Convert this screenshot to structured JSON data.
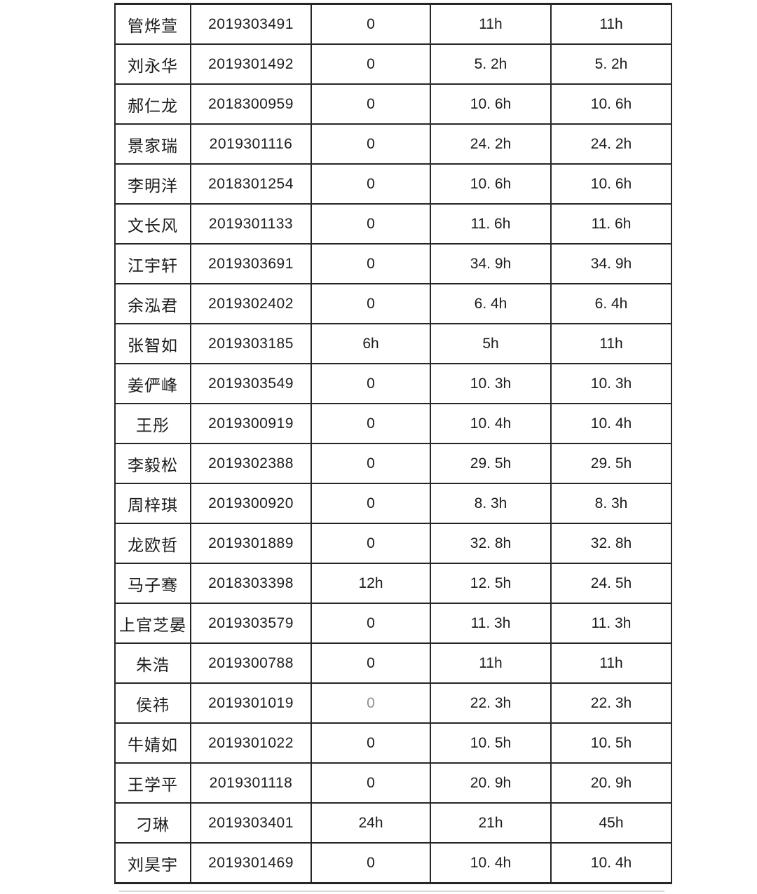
{
  "page": {
    "background_color": "#ffffff",
    "table_border_color": "#262626",
    "table_text_color": "#1c1c1c",
    "muted_text_color": "#8f8f8f"
  },
  "table": {
    "rows": [
      {
        "cells": [
          "管烨萱",
          "2019303491",
          "0",
          "11h",
          "11h"
        ]
      },
      {
        "cells": [
          "刘永华",
          "2019301492",
          "0",
          "5. 2h",
          "5. 2h"
        ]
      },
      {
        "cells": [
          "郝仁龙",
          "2018300959",
          "0",
          "10. 6h",
          "10. 6h"
        ]
      },
      {
        "cells": [
          "景家瑞",
          "2019301116",
          "0",
          "24. 2h",
          "24. 2h"
        ]
      },
      {
        "cells": [
          "李明洋",
          "2018301254",
          "0",
          "10. 6h",
          "10. 6h"
        ]
      },
      {
        "cells": [
          "文长风",
          "2019301133",
          "0",
          "11. 6h",
          "11. 6h"
        ]
      },
      {
        "cells": [
          "江宇轩",
          "2019303691",
          "0",
          "34. 9h",
          "34. 9h"
        ]
      },
      {
        "cells": [
          "余泓君",
          "2019302402",
          "0",
          "6. 4h",
          "6. 4h"
        ]
      },
      {
        "cells": [
          "张智如",
          "2019303185",
          "6h",
          "5h",
          "11h"
        ]
      },
      {
        "cells": [
          "姜俨峰",
          "2019303549",
          "0",
          "10. 3h",
          "10. 3h"
        ]
      },
      {
        "cells": [
          "王彤",
          "2019300919",
          "0",
          "10. 4h",
          "10. 4h"
        ]
      },
      {
        "cells": [
          "李毅松",
          "2019302388",
          "0",
          "29. 5h",
          "29. 5h"
        ]
      },
      {
        "cells": [
          "周梓琪",
          "2019300920",
          "0",
          "8. 3h",
          "8. 3h"
        ]
      },
      {
        "cells": [
          "龙欧哲",
          "2019301889",
          "0",
          "32. 8h",
          "32. 8h"
        ]
      },
      {
        "cells": [
          "马子骞",
          "2018303398",
          "12h",
          "12. 5h",
          "24. 5h"
        ]
      },
      {
        "cells": [
          "上官芝晏",
          "2019303579",
          "0",
          "11. 3h",
          "11. 3h"
        ]
      },
      {
        "cells": [
          "朱浩",
          "2019300788",
          "0",
          "11h",
          "11h"
        ]
      },
      {
        "cells": [
          "侯祎",
          "2019301019",
          "0",
          "22. 3h",
          "22. 3h"
        ],
        "muted_cols": [
          2
        ]
      },
      {
        "cells": [
          "牛婧如",
          "2019301022",
          "0",
          "10. 5h",
          "10. 5h"
        ]
      },
      {
        "cells": [
          "王学平",
          "2019301118",
          "0",
          "20. 9h",
          "20. 9h"
        ]
      },
      {
        "cells": [
          "刁琳",
          "2019303401",
          "24h",
          "21h",
          "45h"
        ]
      },
      {
        "cells": [
          "刘昊宇",
          "2019301469",
          "0",
          "10. 4h",
          "10. 4h"
        ]
      }
    ]
  }
}
